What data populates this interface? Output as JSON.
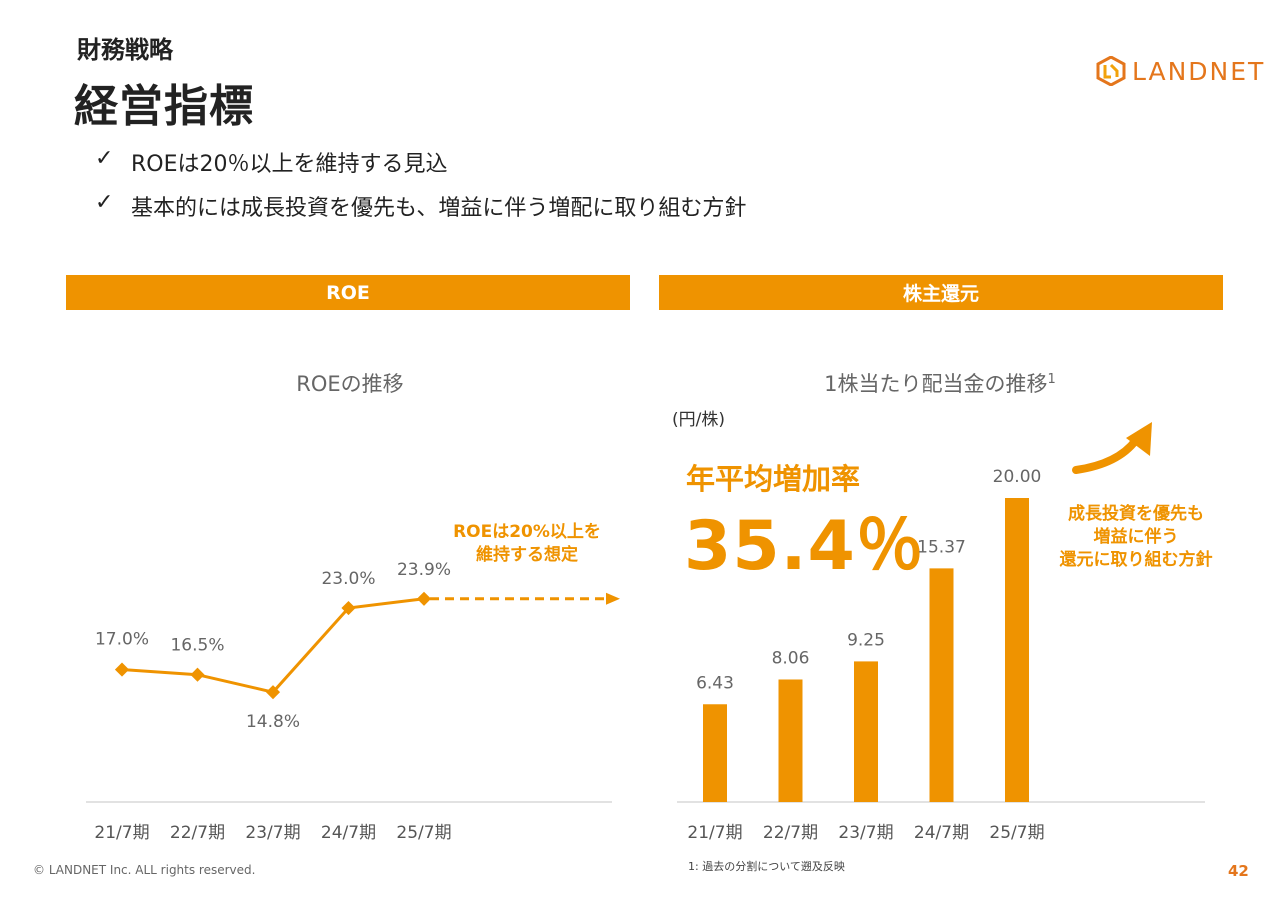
{
  "header": {
    "section": "財務戦略",
    "title": "経営指標",
    "logo_text": "LANDNET"
  },
  "bullets": [
    "ROEは20％以上を維持する見込",
    "基本的には成長投資を優先も、増益に伴う増配に取り組む方針"
  ],
  "check_glyph": "✓",
  "left_panel": {
    "band_label": "ROE",
    "note_line1": "ROEは20%以上を",
    "note_line2": "維持する想定"
  },
  "right_panel": {
    "band_label": "株主還元",
    "unit": "(円/株)",
    "cagr_label": "年平均増加率",
    "cagr_value": "35.4％",
    "note_line1": "成長投資を優先も",
    "note_line2": "増益に伴う",
    "note_line3": "還元に取り組む方針"
  },
  "chart_data": [
    {
      "type": "line",
      "title": "ROEの推移",
      "categories": [
        "21/7期",
        "22/7期",
        "23/7期",
        "24/7期",
        "25/7期"
      ],
      "values": [
        17.0,
        16.5,
        14.8,
        23.0,
        23.9
      ],
      "labels": [
        "17.0%",
        "16.5%",
        "14.8%",
        "23.0%",
        "23.9%"
      ],
      "ylim": [
        0,
        40
      ],
      "grid": false,
      "color": "#ef9300"
    },
    {
      "type": "bar",
      "title": "1株当たり配当金の推移",
      "title_superscript": "1",
      "categories": [
        "21/7期",
        "22/7期",
        "23/7期",
        "24/7期",
        "25/7期"
      ],
      "values": [
        6.43,
        8.06,
        9.25,
        15.37,
        20.0
      ],
      "labels": [
        "6.43",
        "8.06",
        "9.25",
        "15.37",
        "20.00"
      ],
      "ylabel": "(円/株)",
      "ylim": [
        0,
        20
      ],
      "grid": false,
      "color": "#ef9300"
    }
  ],
  "footer": {
    "copyright": "© LANDNET Inc. ALL rights reserved.",
    "footnote": "1: 過去の分割について遡及反映",
    "page_number": "42"
  },
  "colors": {
    "accent": "#ef9300",
    "brand": "#e4761c"
  }
}
